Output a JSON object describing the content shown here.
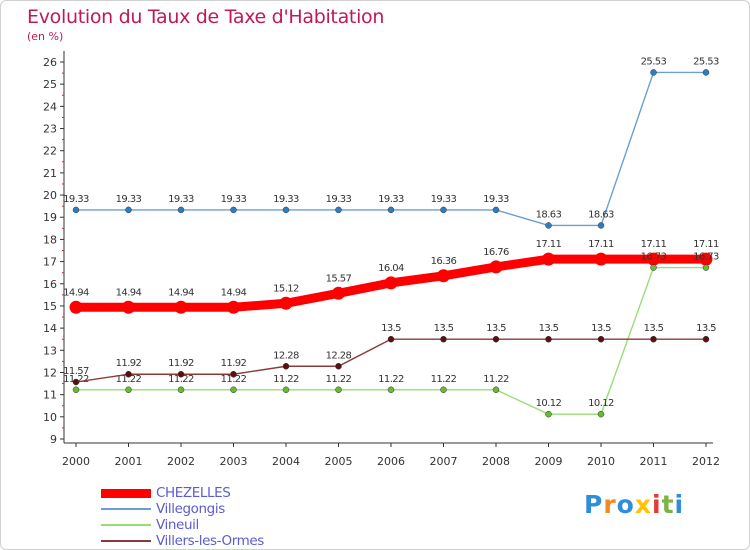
{
  "title": "Evolution du Taux de Taxe d'Habitation",
  "unit_label": "(en %)",
  "logo": {
    "text": "Proxiti",
    "letters": [
      {
        "ch": "P",
        "color": "#2e8fd8"
      },
      {
        "ch": "r",
        "color": "#f08a24"
      },
      {
        "ch": "o",
        "color": "#2e8fd8"
      },
      {
        "ch": "x",
        "color": "#ffc400"
      },
      {
        "ch": "i",
        "color": "#e53935"
      },
      {
        "ch": "t",
        "color": "#7cb342"
      },
      {
        "ch": "i",
        "color": "#2e8fd8"
      }
    ]
  },
  "chart_data": {
    "type": "line",
    "title": "Evolution du Taux de Taxe d'Habitation",
    "ylabel": "(en %)",
    "xlabel": "",
    "x": [
      "2000",
      "2001",
      "2002",
      "2003",
      "2004",
      "2005",
      "2006",
      "2007",
      "2008",
      "2009",
      "2010",
      "2011",
      "2012"
    ],
    "ylim": [
      9,
      26
    ],
    "yticks": [
      9,
      10,
      11,
      12,
      13,
      14,
      15,
      16,
      17,
      18,
      19,
      20,
      21,
      22,
      23,
      24,
      25,
      26
    ],
    "grid": false,
    "legend_position": "bottom-left",
    "series": [
      {
        "name": "CHEZELLES",
        "color": "#ff0000",
        "thick": true,
        "values": [
          14.94,
          14.94,
          14.94,
          14.94,
          15.12,
          15.57,
          16.04,
          16.36,
          16.76,
          17.11,
          17.11,
          17.11,
          17.11
        ],
        "labels": [
          "14.94",
          "14.94",
          "14.94",
          "14.94",
          "15.12",
          "15.57",
          "16.04",
          "16.36",
          "16.76",
          "17.11",
          "17.11",
          "17.11",
          "17.11"
        ]
      },
      {
        "name": "Villegongis",
        "color": "#6a9fd4",
        "point_color": "#2f7cc0",
        "thick": false,
        "values": [
          19.33,
          19.33,
          19.33,
          19.33,
          19.33,
          19.33,
          19.33,
          19.33,
          19.33,
          18.63,
          18.63,
          25.53,
          25.53
        ],
        "labels": [
          "19.33",
          "19.33",
          "19.33",
          "19.33",
          "19.33",
          "19.33",
          "19.33",
          "19.33",
          "19.33",
          "18.63",
          "18.63",
          "25.53",
          "25.53"
        ]
      },
      {
        "name": "Vineuil",
        "color": "#99dd77",
        "point_color": "#66bb33",
        "thick": false,
        "values": [
          11.22,
          11.22,
          11.22,
          11.22,
          11.22,
          11.22,
          11.22,
          11.22,
          11.22,
          10.12,
          10.12,
          16.73,
          16.73
        ],
        "labels": [
          "11.22",
          "11.22",
          "11.22",
          "11.22",
          "11.22",
          "11.22",
          "11.22",
          "11.22",
          "11.22",
          "10.12",
          "10.12",
          "16.73",
          "16.73"
        ]
      },
      {
        "name": "Villers-les-Ormes",
        "color": "#8b3a3a",
        "point_color": "#5a1010",
        "thick": false,
        "values": [
          11.57,
          11.92,
          11.92,
          11.92,
          12.28,
          12.28,
          13.5,
          13.5,
          13.5,
          13.5,
          13.5,
          13.5,
          13.5
        ],
        "labels": [
          "11.57",
          "11.92",
          "11.92",
          "11.92",
          "12.28",
          "12.28",
          "13.5",
          "13.5",
          "13.5",
          "13.5",
          "13.5",
          "13.5",
          "13.5"
        ]
      }
    ]
  }
}
